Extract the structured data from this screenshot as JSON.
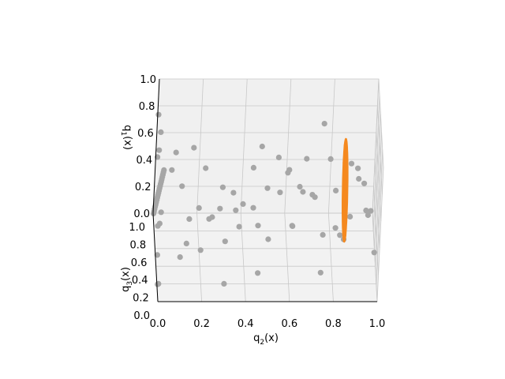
{
  "chart_data": {
    "type": "scatter",
    "projection": "3d",
    "title": "",
    "axes": {
      "x": {
        "label": "q_2(x)",
        "label_main": "q",
        "label_sub": "2",
        "label_tail": "(x)",
        "lim": [
          0,
          1
        ],
        "ticks": [
          0.0,
          0.2,
          0.4,
          0.6,
          0.8,
          1.0
        ],
        "tick_labels": [
          "0.0",
          "0.2",
          "0.4",
          "0.6",
          "0.8",
          "1.0"
        ]
      },
      "y": {
        "label": "q_3(x)",
        "label_main": "q",
        "label_sub": "3",
        "label_tail": "(x)",
        "lim": [
          0,
          1
        ],
        "ticks": [
          0.0,
          0.2,
          0.4,
          0.6,
          0.8,
          1.0
        ],
        "tick_labels": [
          "0.0",
          "0.2",
          "0.4",
          "0.6",
          "0.8",
          "1.0"
        ]
      },
      "z": {
        "label": "q_1(x)",
        "label_main": "q",
        "label_sub": "1",
        "label_tail": "(x)",
        "lim": [
          0,
          1
        ],
        "ticks": [
          0.0,
          0.2,
          0.4,
          0.6,
          0.8,
          1.0
        ],
        "tick_labels": [
          "0.0",
          "0.2",
          "0.4",
          "0.6",
          "0.8",
          "1.0"
        ]
      }
    },
    "grid": true,
    "colors": {
      "points": "#a6a6a6",
      "wireframe": "#f5891f",
      "pane": "#f2f2f2",
      "grid": "#c8c8c8"
    },
    "series": [
      {
        "kind": "points",
        "points": [
          [
            0.0,
            0.0,
            0.98
          ],
          [
            0.0,
            0.05,
            0.93
          ],
          [
            0.0,
            0.1,
            0.88
          ],
          [
            0.0,
            0.15,
            0.83
          ],
          [
            0.0,
            0.2,
            0.78
          ],
          [
            0.0,
            0.25,
            0.73
          ],
          [
            0.0,
            0.3,
            0.68
          ],
          [
            0.0,
            0.35,
            0.63
          ],
          [
            0.0,
            0.4,
            0.58
          ],
          [
            0.0,
            0.45,
            0.53
          ],
          [
            0.0,
            0.5,
            0.48
          ],
          [
            0.0,
            0.55,
            0.43
          ],
          [
            0.0,
            0.6,
            0.38
          ],
          [
            0.0,
            0.65,
            0.33
          ],
          [
            0.0,
            0.7,
            0.28
          ],
          [
            0.0,
            0.75,
            0.23
          ],
          [
            0.0,
            0.8,
            0.18
          ],
          [
            0.0,
            0.85,
            0.13
          ],
          [
            0.0,
            0.9,
            0.08
          ],
          [
            0.0,
            0.95,
            0.03
          ],
          [
            0.0,
            0.02,
            0.12
          ],
          [
            0.0,
            0.12,
            0.05
          ],
          [
            0.0,
            0.3,
            0.15
          ],
          [
            0.0,
            0.55,
            0.9
          ],
          [
            0.0,
            0.65,
            0.7
          ],
          [
            0.0,
            0.4,
            0.3
          ],
          [
            0.0,
            0.2,
            0.45
          ],
          [
            0.0,
            0.8,
            0.55
          ],
          [
            0.0,
            0.9,
            0.8
          ],
          [
            0.0,
            0.1,
            0.6
          ],
          [
            0.12,
            0.05,
            0.4
          ],
          [
            0.22,
            0.1,
            0.55
          ],
          [
            0.3,
            0.15,
            0.35
          ],
          [
            0.18,
            0.3,
            0.5
          ],
          [
            0.28,
            0.2,
            0.72
          ],
          [
            0.35,
            0.35,
            0.45
          ],
          [
            0.42,
            0.12,
            0.62
          ],
          [
            0.5,
            0.25,
            0.3
          ],
          [
            0.55,
            0.4,
            0.55
          ],
          [
            0.46,
            0.48,
            0.25
          ],
          [
            0.6,
            0.1,
            0.5
          ],
          [
            0.65,
            0.3,
            0.62
          ],
          [
            0.62,
            0.55,
            0.2
          ],
          [
            0.25,
            0.5,
            0.3
          ],
          [
            0.15,
            0.6,
            0.22
          ],
          [
            0.38,
            0.62,
            0.15
          ],
          [
            0.3,
            0.05,
            0.1
          ],
          [
            0.45,
            0.02,
            0.2
          ],
          [
            0.1,
            0.2,
            0.2
          ],
          [
            0.2,
            0.4,
            0.12
          ],
          [
            0.5,
            0.6,
            0.45
          ],
          [
            0.35,
            0.7,
            0.35
          ],
          [
            0.22,
            0.75,
            0.5
          ],
          [
            0.4,
            0.8,
            0.2
          ],
          [
            0.12,
            0.85,
            0.3
          ],
          [
            0.55,
            0.72,
            0.6
          ],
          [
            0.6,
            0.85,
            0.4
          ],
          [
            0.3,
            0.9,
            0.1
          ],
          [
            0.48,
            0.92,
            0.55
          ],
          [
            0.66,
            0.92,
            0.25
          ],
          [
            0.05,
            0.35,
            0.75
          ],
          [
            0.15,
            0.45,
            0.85
          ],
          [
            0.08,
            0.7,
            0.65
          ],
          [
            0.42,
            0.3,
            0.8
          ],
          [
            0.58,
            0.2,
            0.85
          ],
          [
            0.7,
            0.45,
            0.5
          ],
          [
            0.72,
            0.65,
            0.35
          ],
          [
            0.68,
            0.78,
            0.55
          ],
          [
            0.75,
            0.3,
            0.3
          ],
          [
            0.78,
            0.55,
            0.7
          ],
          [
            0.8,
            0.15,
            0.45
          ],
          [
            0.82,
            0.8,
            0.3
          ],
          [
            0.85,
            0.4,
            0.2
          ],
          [
            0.88,
            0.65,
            0.6
          ],
          [
            0.9,
            0.25,
            0.75
          ],
          [
            0.92,
            0.9,
            0.4
          ],
          [
            0.95,
            0.5,
            0.35
          ],
          [
            0.97,
            0.75,
            0.15
          ],
          [
            0.98,
            0.1,
            0.3
          ],
          [
            0.99,
            0.95,
            0.05
          ],
          [
            0.86,
            0.05,
            0.6
          ],
          [
            0.76,
            0.95,
            0.7
          ],
          [
            0.93,
            0.35,
            0.65
          ],
          [
            0.84,
            0.6,
            0.1
          ],
          [
            0.74,
            0.1,
            0.15
          ]
        ]
      },
      {
        "kind": "wireframe",
        "shape": "concentric rings with radial spokes",
        "center": [
          0.85,
          0.5,
          0.5
        ],
        "ring_radii": [
          0.05,
          0.1,
          0.18,
          0.25,
          0.32
        ],
        "spokes": 12
      }
    ]
  }
}
